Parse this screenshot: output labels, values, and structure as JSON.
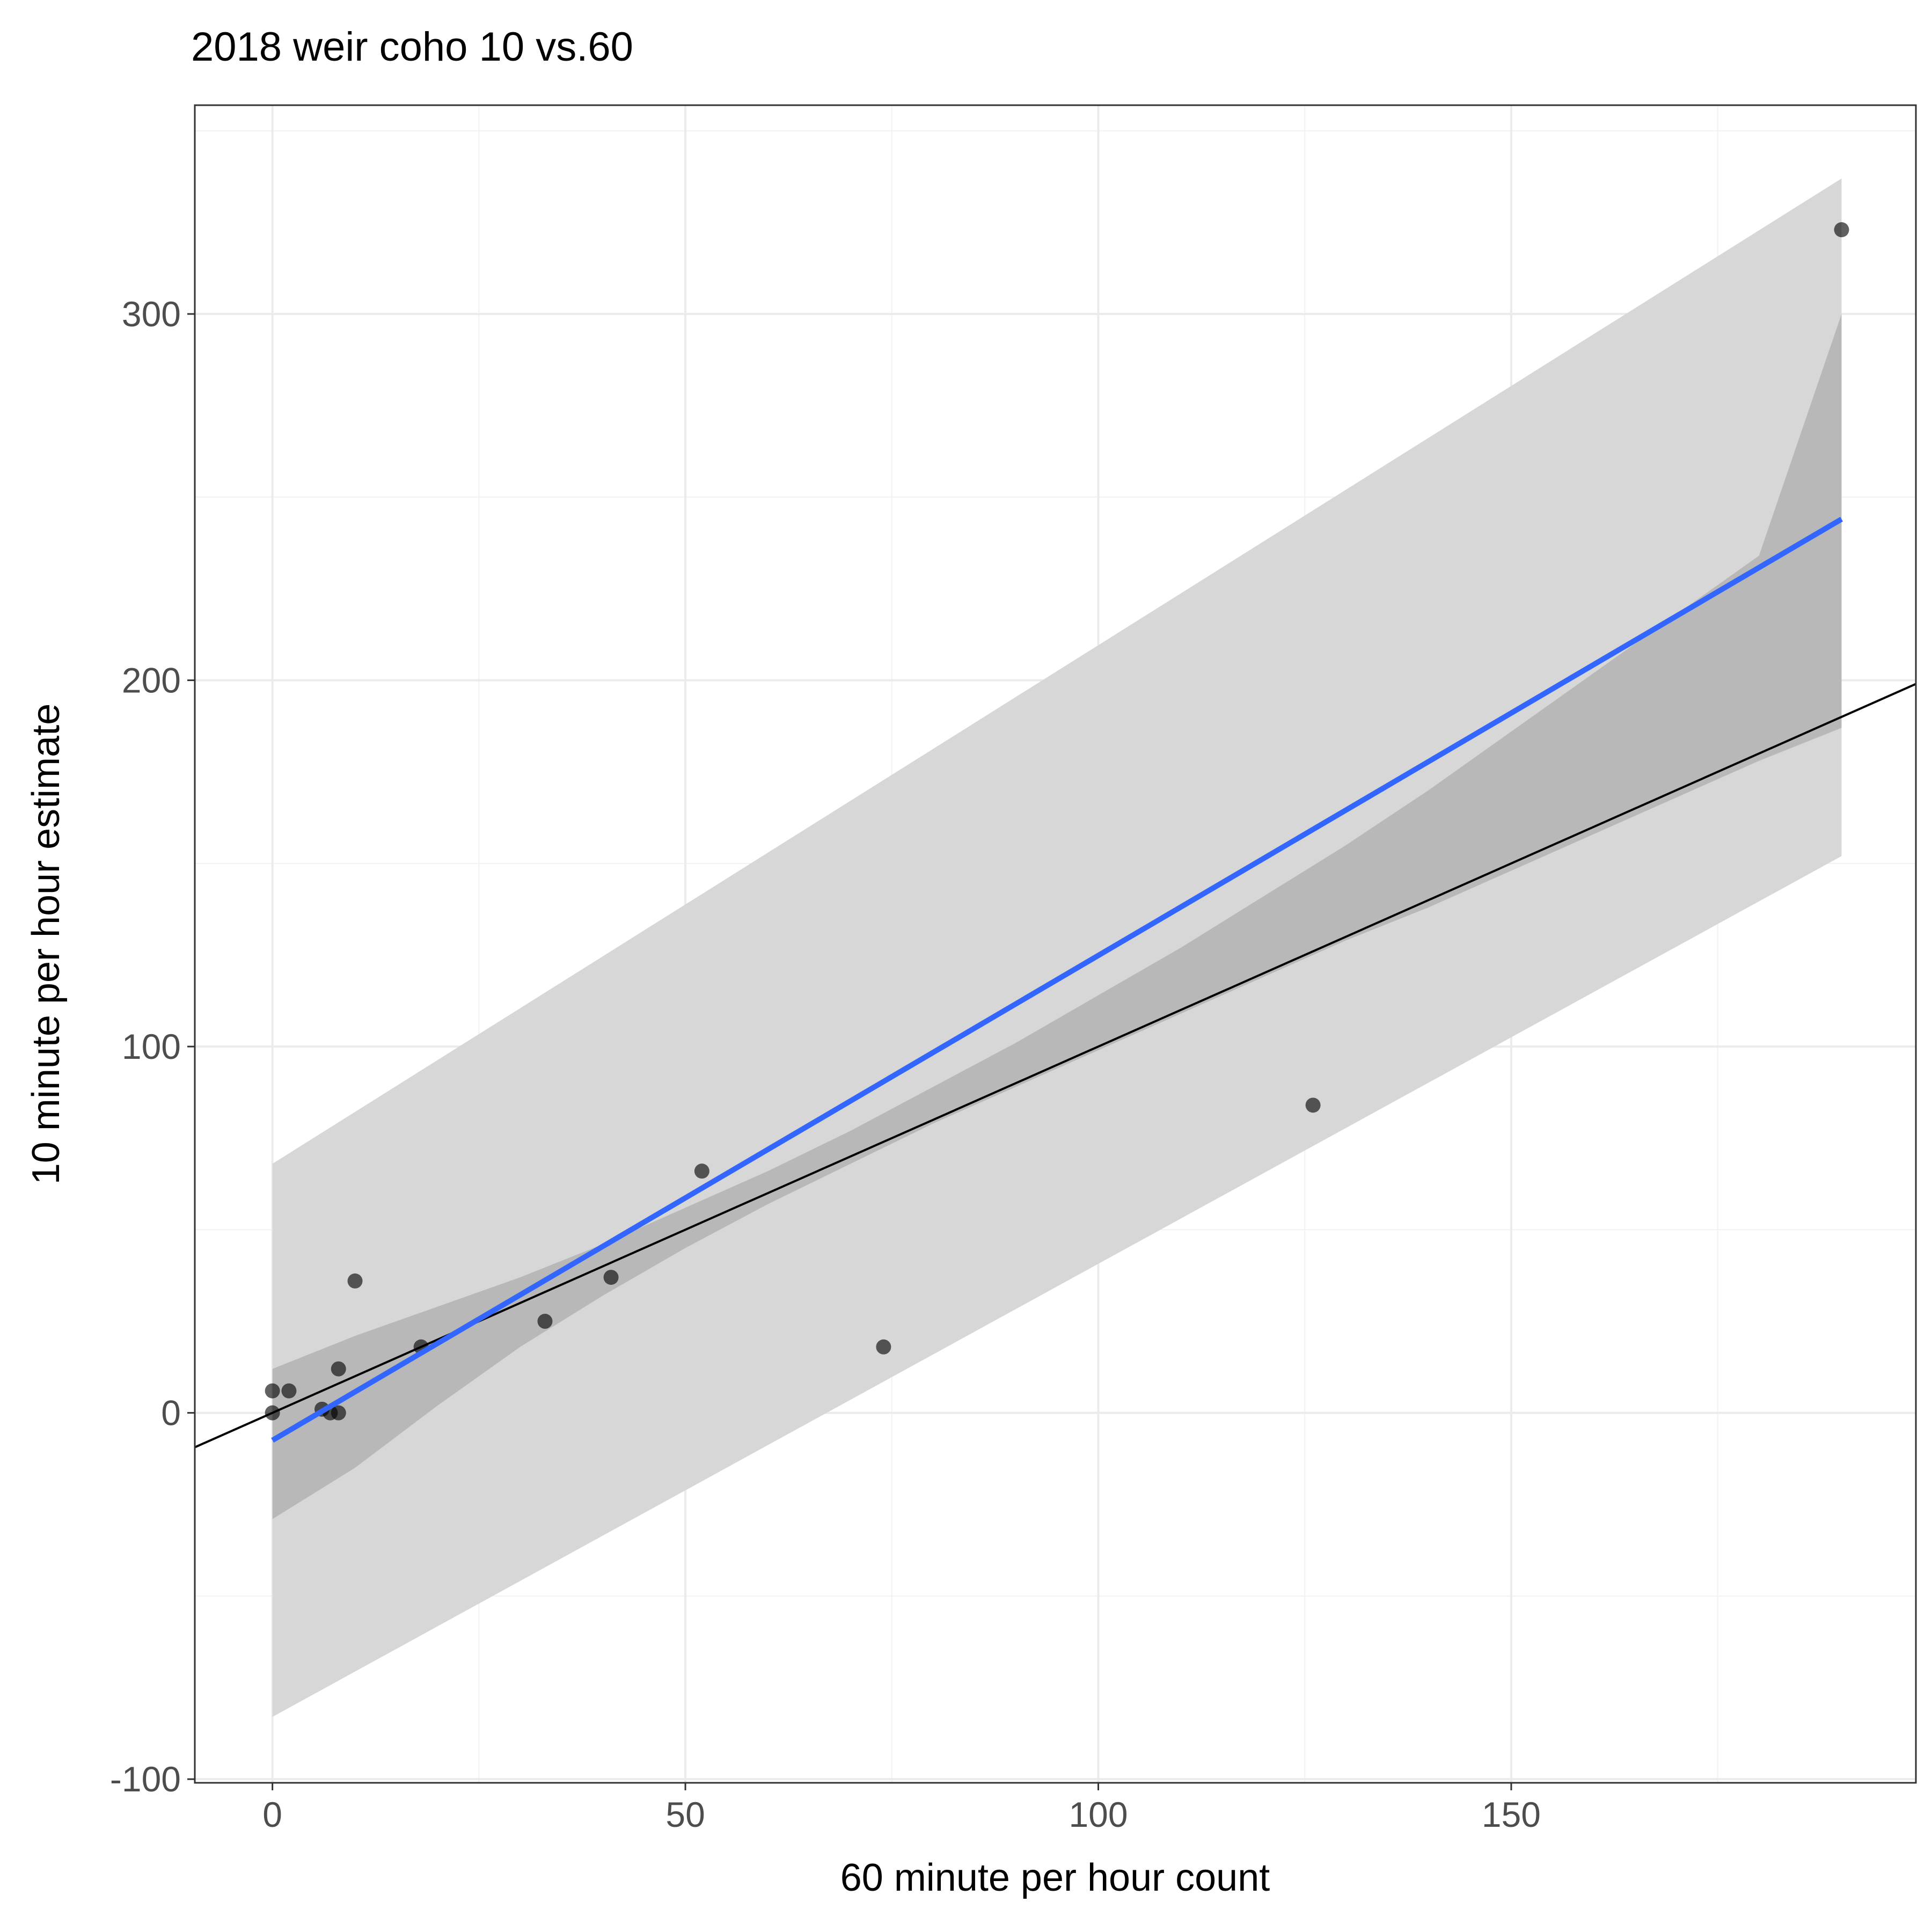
{
  "chart_data": {
    "type": "scatter",
    "title": "2018 weir coho 10 vs.60",
    "xlabel": "60 minute per hour count",
    "ylabel": "10 minute per hour estimate",
    "xlim": [
      -9.4,
      199
    ],
    "ylim": [
      -101,
      357
    ],
    "x_ticks": [
      0,
      50,
      100,
      150
    ],
    "x_tick_labels": [
      "0",
      "50",
      "100",
      "150"
    ],
    "y_ticks": [
      -100,
      0,
      100,
      200,
      300
    ],
    "y_tick_labels": [
      "-100",
      "0",
      "100",
      "200",
      "300"
    ],
    "grid": true,
    "legend": "none",
    "points": {
      "x": [
        0,
        0,
        2,
        6,
        7,
        8,
        8,
        10,
        18,
        33,
        41,
        52,
        74,
        126,
        190
      ],
      "y": [
        6,
        0,
        6,
        1,
        0,
        0,
        12,
        36,
        18,
        25,
        37,
        66,
        18,
        84,
        323
      ]
    },
    "fit_line": {
      "x": [
        0,
        190
      ],
      "y": [
        -7.5,
        244
      ],
      "color": "#3366ff"
    },
    "confidence_band": {
      "x": [
        0,
        10,
        20,
        30,
        40,
        50,
        60,
        70,
        80,
        90,
        100,
        110,
        120,
        130,
        140,
        150,
        160,
        170,
        180,
        190
      ],
      "lower": [
        -29,
        -15,
        2,
        18,
        32,
        45,
        57,
        68,
        79,
        89,
        99,
        109,
        119,
        129,
        138,
        148,
        158,
        168,
        178,
        187
      ],
      "upper": [
        12,
        21,
        29,
        37,
        46,
        56,
        66,
        77,
        89,
        101,
        114,
        127,
        141,
        155,
        170,
        186,
        202,
        218,
        234,
        300
      ]
    },
    "prediction_band": {
      "x": [
        0,
        190
      ],
      "lower": [
        -83,
        152
      ],
      "upper": [
        68,
        337
      ]
    },
    "reference_line": {
      "slope": 1,
      "intercept": 0,
      "label": "y = x",
      "color": "#000000"
    }
  }
}
